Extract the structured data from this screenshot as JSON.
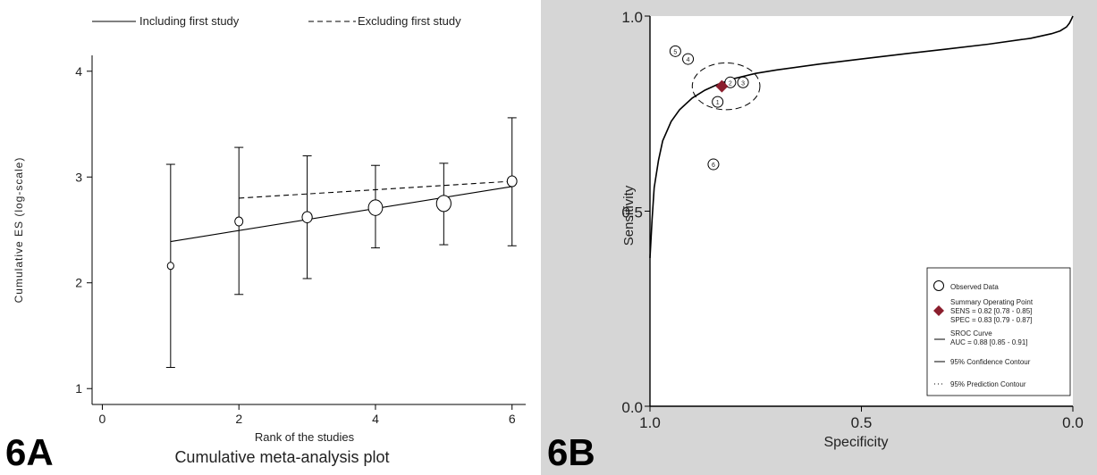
{
  "chart_data": [
    {
      "panel_label": "6A",
      "type": "line",
      "title": "Cumulative meta-analysis plot",
      "xlabel": "Rank of the studies",
      "ylabel": "Cumulative ES (log-scale)",
      "xlim": [
        -0.15,
        6.2
      ],
      "ylim": [
        0.85,
        4.15
      ],
      "xticks": [
        0,
        2,
        4,
        6
      ],
      "yticks": [
        1,
        2,
        3,
        4
      ],
      "legend_position": "top",
      "series": [
        {
          "name": "Including first study",
          "style": "solid",
          "x": [
            1,
            6
          ],
          "y": [
            2.39,
            2.91
          ]
        },
        {
          "name": "Excluding first study",
          "style": "dashed",
          "x": [
            2,
            6
          ],
          "y": [
            2.8,
            2.96
          ]
        }
      ],
      "points": [
        {
          "x": 1,
          "y": 2.16,
          "lower": 1.2,
          "upper": 3.12,
          "size": 0.8
        },
        {
          "x": 2,
          "y": 2.58,
          "lower": 1.89,
          "upper": 3.28,
          "size": 1.0
        },
        {
          "x": 3,
          "y": 2.62,
          "lower": 2.04,
          "upper": 3.2,
          "size": 1.25
        },
        {
          "x": 4,
          "y": 2.71,
          "lower": 2.33,
          "upper": 3.11,
          "size": 1.75
        },
        {
          "x": 5,
          "y": 2.75,
          "lower": 2.36,
          "upper": 3.13,
          "size": 1.8
        },
        {
          "x": 6,
          "y": 2.96,
          "lower": 2.35,
          "upper": 3.56,
          "size": 1.2
        }
      ]
    },
    {
      "panel_label": "6B",
      "type": "scatter",
      "xlabel": "Specificity",
      "ylabel": "Sensitivity",
      "x_reversed": true,
      "xlim": [
        1.0,
        0.0
      ],
      "ylim": [
        0.0,
        1.0
      ],
      "xticks": [
        1.0,
        0.5,
        0.0
      ],
      "xtick_labels": [
        "1.0",
        "0.5",
        "0.0"
      ],
      "yticks": [
        0.0,
        0.5,
        1.0
      ],
      "ytick_labels": [
        "0.0",
        "0.5",
        "1.0"
      ],
      "observed_data": [
        {
          "id": "5",
          "spec": 0.94,
          "sens": 0.91
        },
        {
          "id": "4",
          "spec": 0.91,
          "sens": 0.89
        },
        {
          "id": "2",
          "spec": 0.81,
          "sens": 0.83
        },
        {
          "id": "3",
          "spec": 0.78,
          "sens": 0.83
        },
        {
          "id": "1",
          "spec": 0.84,
          "sens": 0.78
        },
        {
          "id": "6",
          "spec": 0.85,
          "sens": 0.62
        }
      ],
      "summary_point": {
        "spec": 0.83,
        "sens": 0.82
      },
      "confidence_contour": {
        "center_spec": 0.82,
        "center_sens": 0.82,
        "radius_spec": 0.08,
        "radius_sens": 0.06
      },
      "sroc_curve": {
        "spec": [
          1.0,
          0.995,
          0.99,
          0.98,
          0.97,
          0.95,
          0.93,
          0.9,
          0.87,
          0.84,
          0.8,
          0.75,
          0.7,
          0.6,
          0.5,
          0.4,
          0.3,
          0.2,
          0.1,
          0.05,
          0.03,
          0.015,
          0.008,
          0.003,
          0.0
        ],
        "sens": [
          0.38,
          0.48,
          0.56,
          0.63,
          0.68,
          0.73,
          0.76,
          0.79,
          0.81,
          0.825,
          0.84,
          0.853,
          0.862,
          0.877,
          0.89,
          0.903,
          0.915,
          0.928,
          0.943,
          0.955,
          0.962,
          0.972,
          0.982,
          0.993,
          1.0
        ]
      },
      "legend_position": "bottom-right",
      "legend": {
        "observed": "Observed Data",
        "summary_title": "Summary Operating Point",
        "summary_sens": "SENS = 0.82 [0.78 - 0.85]",
        "summary_spec": "SPEC = 0.83 [0.79 - 0.87]",
        "sroc_title": "SROC Curve",
        "sroc_auc": "AUC = 0.88 [0.85 - 0.91]",
        "confidence": "95% Confidence Contour",
        "prediction": "95% Prediction Contour"
      }
    }
  ],
  "colors": {
    "summary_point": "#8b1e2d",
    "panel_b_background": "#d6d6d6",
    "axis": "#000000"
  }
}
